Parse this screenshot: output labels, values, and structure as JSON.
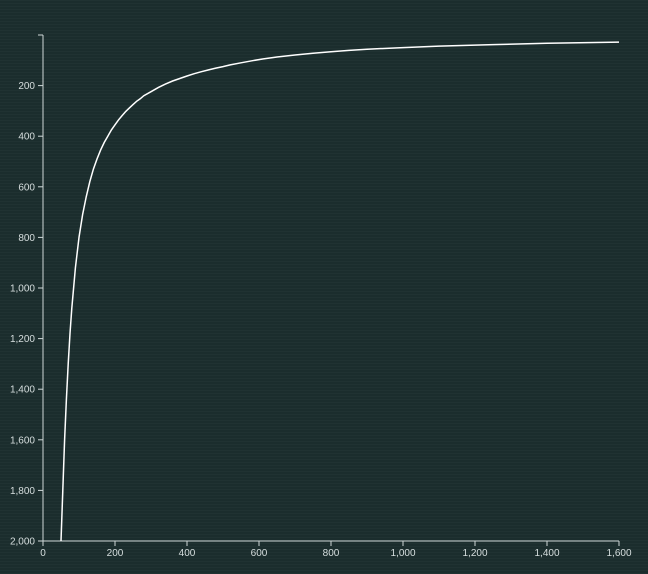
{
  "chart_data": {
    "type": "line",
    "title": "",
    "xlabel": "",
    "ylabel": "",
    "xlim": [
      0,
      1600
    ],
    "ylim": [
      0,
      2000
    ],
    "y_inverted": true,
    "grid": false,
    "colors": {
      "background": "#1b2d2d",
      "line": "#ffffff",
      "axis": "#cfd8d8",
      "text": "#d6dede"
    },
    "x_ticks": [
      {
        "value": 0,
        "label": "0"
      },
      {
        "value": 200,
        "label": "200"
      },
      {
        "value": 400,
        "label": "400"
      },
      {
        "value": 600,
        "label": "600"
      },
      {
        "value": 800,
        "label": "800"
      },
      {
        "value": 1000,
        "label": "1,000"
      },
      {
        "value": 1200,
        "label": "1,200"
      },
      {
        "value": 1400,
        "label": "1,400"
      },
      {
        "value": 1600,
        "label": "1,600"
      }
    ],
    "y_ticks": [
      {
        "value": 200,
        "label": "200"
      },
      {
        "value": 400,
        "label": "400"
      },
      {
        "value": 600,
        "label": "600"
      },
      {
        "value": 800,
        "label": "800"
      },
      {
        "value": 1000,
        "label": "1,000"
      },
      {
        "value": 1200,
        "label": "1,200"
      },
      {
        "value": 1400,
        "label": "1,400"
      },
      {
        "value": 1600,
        "label": "1,600"
      },
      {
        "value": 1800,
        "label": "1,800"
      },
      {
        "value": 2000,
        "label": "2,000"
      }
    ],
    "series": [
      {
        "x": [
          50,
          55,
          60,
          65,
          70,
          75,
          80,
          90,
          100,
          110,
          120,
          130,
          140,
          150,
          160,
          170,
          180,
          190,
          200,
          210,
          220,
          230,
          240,
          250,
          260,
          270,
          280,
          300,
          320,
          340,
          360,
          380,
          400,
          420,
          440,
          460,
          480,
          500,
          520,
          550,
          580,
          610,
          650,
          700,
          750,
          800,
          850,
          900,
          1000,
          1100,
          1250,
          1400,
          1600
        ],
        "y": [
          2000,
          1800,
          1600,
          1440,
          1300,
          1180,
          1080,
          920,
          800,
          710,
          640,
          580,
          530,
          490,
          455,
          425,
          400,
          375,
          355,
          335,
          318,
          302,
          288,
          275,
          262,
          252,
          240,
          224,
          208,
          194,
          182,
          172,
          162,
          153,
          145,
          138,
          131,
          125,
          118,
          110,
          102,
          95,
          87,
          79,
          72,
          66,
          61,
          56,
          50,
          44,
          38,
          33,
          28
        ]
      }
    ]
  }
}
